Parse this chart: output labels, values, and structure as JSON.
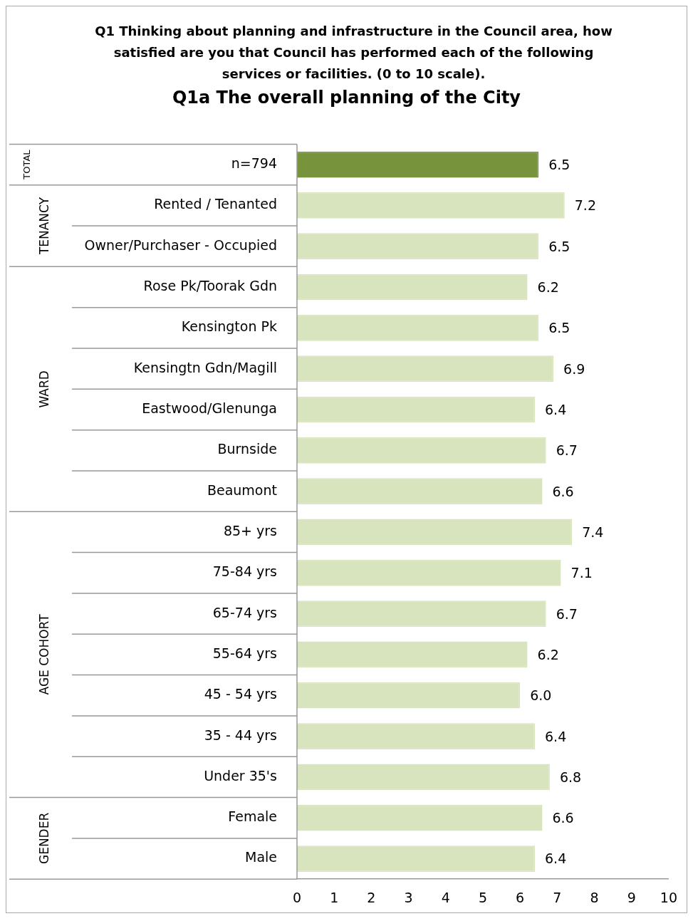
{
  "chart_data": {
    "type": "bar",
    "orientation": "horizontal",
    "title": "Q1 Thinking about planning and infrastructure in the Council area, how satisfied are you that Council has performed each of the following services or facilities.  (0 to 10 scale).",
    "subtitle": "Q1a The overall planning of the City",
    "categories": [
      "n=794",
      "Rented / Tenanted",
      "Owner/Purchaser - Occupied",
      "Rose Pk/Toorak Gdn",
      "Kensington Pk",
      "Kensingtn Gdn/Magill",
      "Eastwood/Glenunga",
      "Burnside",
      "Beaumont",
      "85+ yrs",
      "75-84 yrs",
      "65-74 yrs",
      "55-64 yrs",
      "45 - 54 yrs",
      "35 - 44 yrs",
      "Under 35's",
      "Female",
      "Male"
    ],
    "values": [
      6.5,
      7.2,
      6.5,
      6.2,
      6.5,
      6.9,
      6.4,
      6.7,
      6.6,
      7.4,
      7.1,
      6.7,
      6.2,
      6.0,
      6.4,
      6.8,
      6.6,
      6.4
    ],
    "value_labels": [
      "6.5",
      "7.2",
      "6.5",
      "6.2",
      "6.5",
      "6.9",
      "6.4",
      "6.7",
      "6.6",
      "7.4",
      "7.1",
      "6.7",
      "6.2",
      "6.0",
      "6.4",
      "6.8",
      "6.6",
      "6.4"
    ],
    "colors": [
      "#77933c",
      "#d7e4bd",
      "#d7e4bd",
      "#d7e4bd",
      "#d7e4bd",
      "#d7e4bd",
      "#d7e4bd",
      "#d7e4bd",
      "#d7e4bd",
      "#d7e4bd",
      "#d7e4bd",
      "#d7e4bd",
      "#d7e4bd",
      "#d7e4bd",
      "#d7e4bd",
      "#d7e4bd",
      "#d7e4bd",
      "#d7e4bd"
    ],
    "xlim": [
      0,
      10
    ],
    "xticks": [
      0,
      1,
      2,
      3,
      4,
      5,
      6,
      7,
      8,
      9,
      10
    ],
    "grid": false,
    "legend": false,
    "annotations": [
      "TOTAL",
      "TENANCY",
      "WARD",
      "AGE COHORT",
      "GENDER"
    ]
  }
}
